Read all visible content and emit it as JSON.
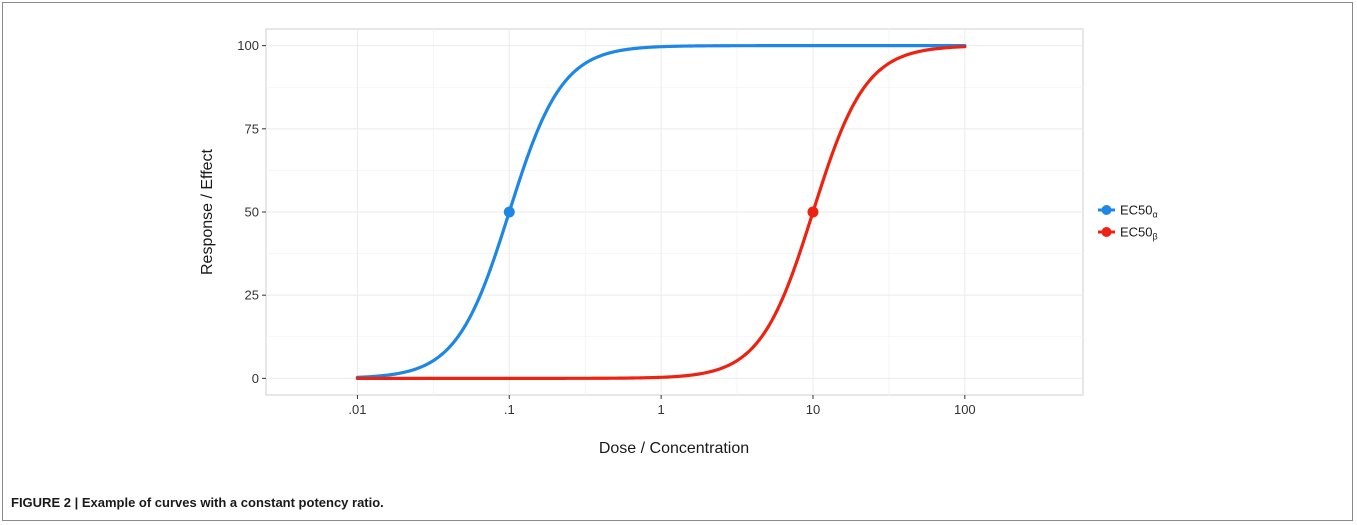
{
  "caption": {
    "label": "FIGURE 2 | ",
    "text": "Example of curves with a constant potency ratio."
  },
  "chart_data": {
    "type": "line",
    "title": "",
    "xlabel": "Dose / Concentration",
    "ylabel": "Response / Effect",
    "xscale": "log10",
    "xlim": [
      0.0025,
      600
    ],
    "ylim": [
      -5,
      105
    ],
    "x_ticks": [
      0.01,
      0.1,
      1,
      10,
      100
    ],
    "x_tick_labels": [
      ".01",
      ".1",
      "1",
      "10",
      "100"
    ],
    "y_ticks": [
      0,
      25,
      50,
      75,
      100
    ],
    "y_tick_labels": [
      "0",
      "25",
      "50",
      "75",
      "100"
    ],
    "grid": true,
    "legend_position": "right",
    "x_range_plotted": [
      0.01,
      100
    ],
    "series": [
      {
        "name": "EC50",
        "subscript": "α",
        "color": "#1e87e5",
        "ec50": 0.1,
        "hill": 2.5,
        "bottom": 0,
        "top": 100,
        "marker": {
          "x": 0.1,
          "y": 50
        }
      },
      {
        "name": "EC50",
        "subscript": "β",
        "color": "#ee2211",
        "ec50": 10,
        "hill": 2.5,
        "bottom": 0,
        "top": 100,
        "marker": {
          "x": 10,
          "y": 50
        }
      }
    ]
  }
}
